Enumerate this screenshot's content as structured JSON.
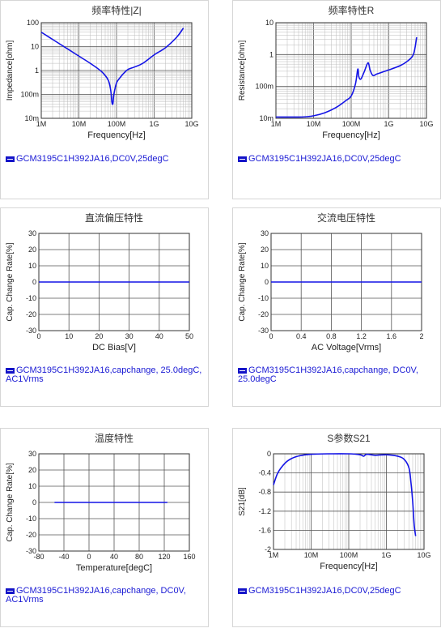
{
  "chart_data": [
    {
      "type": "line",
      "title": "频率特性|Z|",
      "xlabel": "Frequency[Hz]",
      "ylabel": "Impedance[ohm]",
      "xscale": "log",
      "yscale": "log",
      "xlim": [
        1000000,
        10000000000
      ],
      "ylim": [
        0.01,
        100
      ],
      "xticks": [
        "1M",
        "10M",
        "100M",
        "1G",
        "10G"
      ],
      "yticks": [
        "100",
        "10",
        "1",
        "100m",
        "10m"
      ],
      "grid": true,
      "legend": "GCM3195C1H392JA16,DC0V,25degC",
      "series": [
        {
          "name": "GCM3195C1H392JA16,DC0V,25degC",
          "x": [
            1000000,
            2000000,
            5000000,
            10000000,
            20000000,
            40000000,
            60000000,
            70000000,
            75000000,
            80000000,
            85000000,
            100000000,
            130000000,
            160000000,
            200000000,
            300000000,
            500000000,
            1000000000,
            2000000000,
            4000000000,
            6000000000
          ],
          "y": [
            40,
            20,
            8,
            4,
            2,
            0.9,
            0.4,
            0.15,
            0.05,
            0.04,
            0.1,
            0.3,
            0.55,
            0.8,
            1.1,
            1.4,
            2.0,
            4.5,
            9,
            25,
            60
          ]
        }
      ]
    },
    {
      "type": "line",
      "title": "频率特性R",
      "xlabel": "Frequency[Hz]",
      "ylabel": "Resistance[ohm]",
      "xscale": "log",
      "yscale": "log",
      "xlim": [
        1000000,
        10000000000
      ],
      "ylim": [
        0.01,
        10
      ],
      "xticks": [
        "1M",
        "10M",
        "100M",
        "1G",
        "10G"
      ],
      "yticks": [
        "10",
        "1",
        "100m",
        "10m"
      ],
      "grid": true,
      "legend": "GCM3195C1H392JA16,DC0V,25degC",
      "series": [
        {
          "name": "GCM3195C1H392JA16,DC0V,25degC",
          "x": [
            1000000,
            5000000,
            10000000,
            20000000,
            40000000,
            70000000,
            100000000,
            130000000,
            150000000,
            160000000,
            180000000,
            220000000,
            280000000,
            320000000,
            380000000,
            500000000,
            1000000000,
            2000000000,
            3000000000,
            4500000000,
            5500000000
          ],
          "y": [
            0.011,
            0.011,
            0.012,
            0.015,
            0.022,
            0.035,
            0.05,
            0.12,
            0.35,
            0.2,
            0.17,
            0.28,
            0.55,
            0.32,
            0.22,
            0.25,
            0.33,
            0.45,
            0.6,
            1.0,
            3.5
          ]
        }
      ]
    },
    {
      "type": "line",
      "title": "直流偏压特性",
      "xlabel": "DC Bias[V]",
      "ylabel": "Cap. Change Rate[%]",
      "xlim": [
        0,
        50
      ],
      "ylim": [
        -30,
        30
      ],
      "xticks": [
        "0",
        "10",
        "20",
        "30",
        "40",
        "50"
      ],
      "yticks": [
        "30",
        "20",
        "10",
        "0",
        "-10",
        "-20",
        "-30"
      ],
      "grid": true,
      "legend": "GCM3195C1H392JA16,capchange, 25.0degC, AC1Vrms",
      "series": [
        {
          "name": "GCM3195C1H392JA16,capchange, 25.0degC, AC1Vrms",
          "x": [
            0,
            50
          ],
          "y": [
            0,
            0
          ]
        }
      ]
    },
    {
      "type": "line",
      "title": "交流电压特性",
      "xlabel": "AC Voltage[Vrms]",
      "ylabel": "Cap. Change Rate[%]",
      "xlim": [
        0,
        2
      ],
      "ylim": [
        -30,
        30
      ],
      "xticks": [
        "0",
        "0.4",
        "0.8",
        "1.2",
        "1.6",
        "2"
      ],
      "yticks": [
        "30",
        "20",
        "10",
        "0",
        "-10",
        "-20",
        "-30"
      ],
      "grid": true,
      "legend": "GCM3195C1H392JA16,capchange, DC0V, 25.0degC",
      "series": [
        {
          "name": "GCM3195C1H392JA16,capchange, DC0V, 25.0degC",
          "x": [
            0,
            2
          ],
          "y": [
            0,
            0
          ]
        }
      ]
    },
    {
      "type": "line",
      "title": "温度特性",
      "xlabel": "Temperature[degC]",
      "ylabel": "Cap. Change Rate[%]",
      "xlim": [
        -80,
        160
      ],
      "ylim": [
        -30,
        30
      ],
      "xticks": [
        "-80",
        "-40",
        "0",
        "40",
        "80",
        "120",
        "160"
      ],
      "yticks": [
        "30",
        "20",
        "10",
        "0",
        "-10",
        "-20",
        "-30"
      ],
      "grid": true,
      "legend": "GCM3195C1H392JA16,capchange, DC0V, AC1Vrms",
      "series": [
        {
          "name": "GCM3195C1H392JA16,capchange, DC0V, AC1Vrms",
          "x": [
            -55,
            125
          ],
          "y": [
            0,
            0
          ]
        }
      ]
    },
    {
      "type": "line",
      "title": "S参数S21",
      "xlabel": "Frequency[Hz]",
      "ylabel": "S21[dB]",
      "xscale": "log",
      "xlim": [
        1000000,
        10000000000
      ],
      "ylim": [
        -2,
        0
      ],
      "xticks": [
        "1M",
        "10M",
        "100M",
        "1G",
        "10G"
      ],
      "yticks": [
        "0",
        "-0.4",
        "-0.8",
        "-1.2",
        "-1.6",
        "-2"
      ],
      "grid": true,
      "legend": "GCM3195C1H392JA16,DC0V,25degC",
      "series": [
        {
          "name": "GCM3195C1H392JA16,DC0V,25degC",
          "x": [
            1000000,
            1300000,
            2000000,
            3000000,
            5000000,
            10000000,
            30000000,
            100000000,
            200000000,
            250000000,
            300000000,
            500000000,
            1000000000,
            2000000000,
            3000000000,
            4000000000,
            4500000000,
            5000000000,
            5500000000,
            6000000000
          ],
          "y": [
            -0.65,
            -0.4,
            -0.2,
            -0.1,
            -0.04,
            -0.01,
            0,
            0,
            -0.02,
            -0.05,
            -0.01,
            -0.03,
            -0.02,
            -0.05,
            -0.12,
            -0.3,
            -0.6,
            -1.0,
            -1.5,
            -1.72
          ]
        }
      ]
    }
  ]
}
